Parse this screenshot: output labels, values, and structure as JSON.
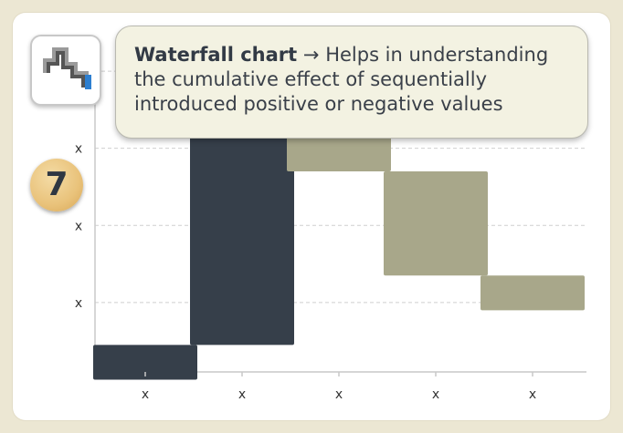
{
  "badge_number": "7",
  "callout": {
    "title": "Waterfall chart",
    "arrow": "→",
    "description": "Helps in understanding the cumulative effect of sequentially introduced positive or negative values"
  },
  "icon": {
    "name": "waterfall-chart-icon"
  },
  "colors": {
    "background": "#ece7d3",
    "dark_bar": "#363f4a",
    "light_bar": "#a8a78a",
    "callout_bg": "#f3f2e2",
    "badge": "#e9c27a"
  },
  "chart_data": {
    "type": "bar",
    "subtype": "waterfall",
    "categories": [
      "x",
      "x",
      "x",
      "x",
      "x"
    ],
    "y_tick_labels": [
      "x",
      "x",
      "x",
      "x"
    ],
    "y_ticks": [
      1,
      2,
      3,
      4
    ],
    "bars": [
      {
        "start": 0,
        "end": 0.45,
        "color": "dark"
      },
      {
        "start": 0.45,
        "end": 3.15,
        "color": "dark"
      },
      {
        "start": 3.15,
        "end": 2.7,
        "color": "light"
      },
      {
        "start": 2.7,
        "end": 1.35,
        "color": "light"
      },
      {
        "start": 1.35,
        "end": 0.9,
        "color": "light"
      }
    ],
    "ylim": [
      0.1,
      4.45
    ],
    "grid": true,
    "xlabel": "",
    "ylabel": "",
    "title": ""
  }
}
